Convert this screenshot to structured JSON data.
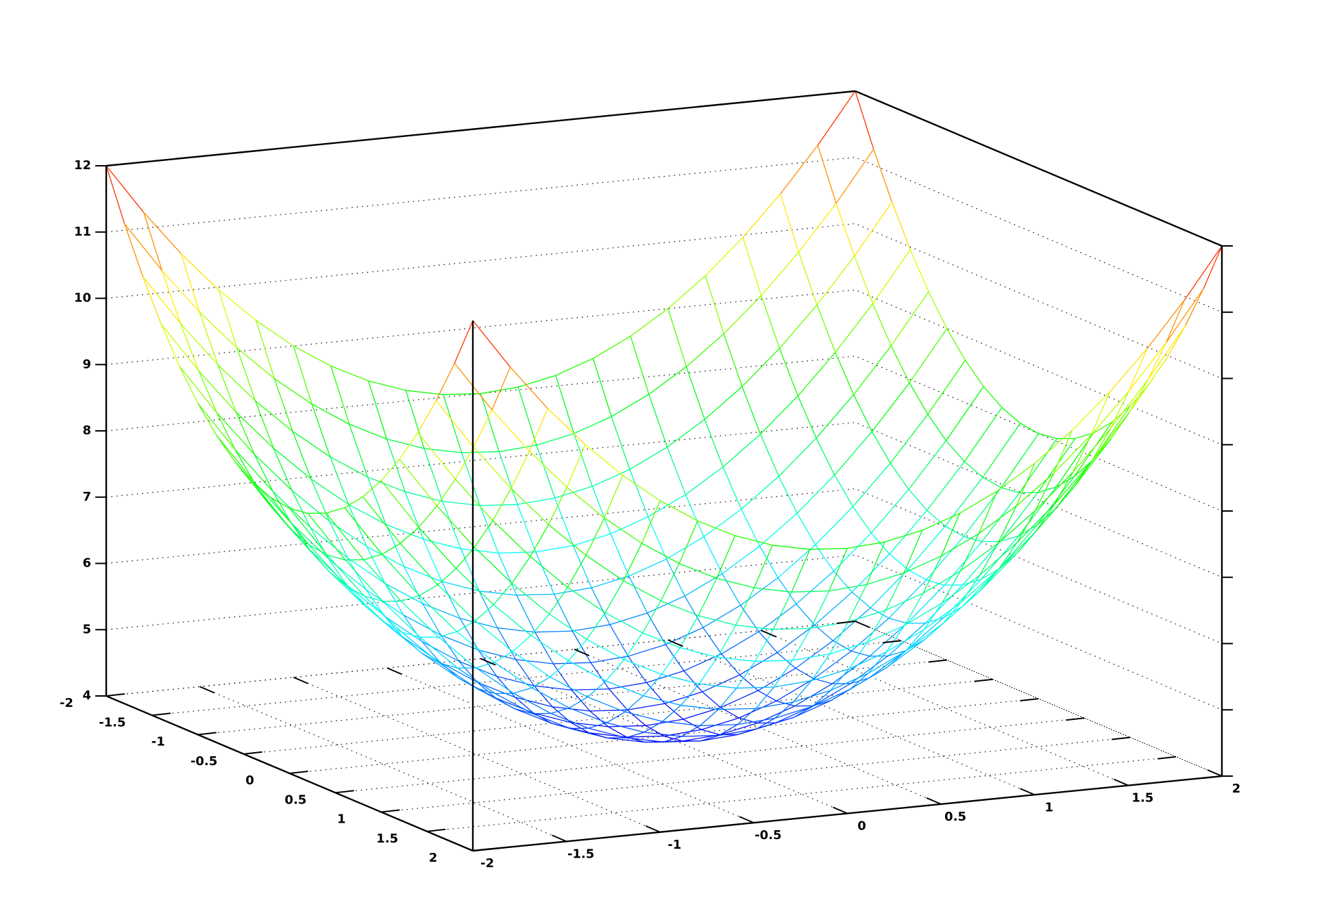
{
  "chart_data": {
    "type": "surface",
    "x": [
      -2,
      -1.8,
      -1.6,
      -1.4,
      -1.2,
      -1,
      -0.8,
      -0.6,
      -0.4,
      -0.2,
      0,
      0.2,
      0.4,
      0.6,
      0.8,
      1,
      1.2,
      1.4,
      1.6,
      1.8,
      2
    ],
    "y": [
      -2,
      -1.8,
      -1.6,
      -1.4,
      -1.2,
      -1,
      -0.8,
      -0.6,
      -0.4,
      -0.2,
      0,
      0.2,
      0.4,
      0.6,
      0.8,
      1,
      1.2,
      1.4,
      1.6,
      1.8,
      2
    ],
    "z": [
      [
        12,
        11.24,
        10.56,
        9.96,
        9.44,
        9,
        8.64,
        8.36,
        8.16,
        8.04,
        8,
        8.04,
        8.16,
        8.36,
        8.64,
        9,
        9.44,
        9.96,
        10.56,
        11.24,
        12
      ],
      [
        11.24,
        10.48,
        9.8,
        9.2,
        8.68,
        8.24,
        7.88,
        7.6,
        7.4,
        7.28,
        7.24,
        7.28,
        7.4,
        7.6,
        7.88,
        8.24,
        8.68,
        9.2,
        9.8,
        10.48,
        11.24
      ],
      [
        10.56,
        9.8,
        9.12,
        8.52,
        8,
        7.56,
        7.2,
        6.92,
        6.72,
        6.6,
        6.56,
        6.6,
        6.72,
        6.92,
        7.2,
        7.56,
        8,
        8.52,
        9.12,
        9.8,
        10.56
      ],
      [
        9.96,
        9.2,
        8.52,
        7.92,
        7.4,
        6.96,
        6.6,
        6.32,
        6.12,
        6,
        5.96,
        6,
        6.12,
        6.32,
        6.6,
        6.96,
        7.4,
        7.92,
        8.52,
        9.2,
        9.96
      ],
      [
        9.44,
        8.68,
        8,
        7.4,
        6.88,
        6.44,
        6.08,
        5.8,
        5.6,
        5.48,
        5.44,
        5.48,
        5.6,
        5.8,
        6.08,
        6.44,
        6.88,
        7.4,
        8,
        8.68,
        9.44
      ],
      [
        9,
        8.24,
        7.56,
        6.96,
        6.44,
        6,
        5.64,
        5.36,
        5.16,
        5.04,
        5,
        5.04,
        5.16,
        5.36,
        5.64,
        6,
        6.44,
        6.96,
        7.56,
        8.24,
        9
      ],
      [
        8.64,
        7.88,
        7.2,
        6.6,
        6.08,
        5.64,
        5.28,
        5,
        4.8,
        4.68,
        4.64,
        4.68,
        4.8,
        5,
        5.28,
        5.64,
        6.08,
        6.6,
        7.2,
        7.88,
        8.64
      ],
      [
        8.36,
        7.6,
        6.92,
        6.32,
        5.8,
        5.36,
        5,
        4.72,
        4.52,
        4.4,
        4.36,
        4.4,
        4.52,
        4.72,
        5,
        5.36,
        5.8,
        6.32,
        6.92,
        7.6,
        8.36
      ],
      [
        8.16,
        7.4,
        6.72,
        6.12,
        5.6,
        5.16,
        4.8,
        4.52,
        4.32,
        4.2,
        4.16,
        4.2,
        4.32,
        4.52,
        4.8,
        5.16,
        5.6,
        6.12,
        6.72,
        7.4,
        8.16
      ],
      [
        8.04,
        7.28,
        6.6,
        6,
        5.48,
        5.04,
        4.68,
        4.4,
        4.2,
        4.08,
        4.04,
        4.08,
        4.2,
        4.4,
        4.68,
        5.04,
        5.48,
        6,
        6.6,
        7.28,
        8.04
      ],
      [
        8,
        7.24,
        6.56,
        5.96,
        5.44,
        5,
        4.64,
        4.36,
        4.16,
        4.04,
        4,
        4.04,
        4.16,
        4.36,
        4.64,
        5,
        5.44,
        5.96,
        6.56,
        7.24,
        8
      ],
      [
        8.04,
        7.28,
        6.6,
        6,
        5.48,
        5.04,
        4.68,
        4.4,
        4.2,
        4.08,
        4.04,
        4.08,
        4.2,
        4.4,
        4.68,
        5.04,
        5.48,
        6,
        6.6,
        7.28,
        8.04
      ],
      [
        8.16,
        7.4,
        6.72,
        6.12,
        5.6,
        5.16,
        4.8,
        4.52,
        4.32,
        4.2,
        4.16,
        4.2,
        4.32,
        4.52,
        4.8,
        5.16,
        5.6,
        6.12,
        6.72,
        7.4,
        8.16
      ],
      [
        8.36,
        7.6,
        6.92,
        6.32,
        5.8,
        5.36,
        5,
        4.72,
        4.52,
        4.4,
        4.36,
        4.4,
        4.52,
        4.72,
        5,
        5.36,
        5.8,
        6.32,
        6.92,
        7.6,
        8.36
      ],
      [
        8.64,
        7.88,
        7.2,
        6.6,
        6.08,
        5.64,
        5.28,
        5,
        4.8,
        4.68,
        4.64,
        4.68,
        4.8,
        5,
        5.28,
        5.64,
        6.08,
        6.6,
        7.2,
        7.88,
        8.64
      ],
      [
        9,
        8.24,
        7.56,
        6.96,
        6.44,
        6,
        5.64,
        5.36,
        5.16,
        5.04,
        5,
        5.04,
        5.16,
        5.36,
        5.64,
        6,
        6.44,
        6.96,
        7.56,
        8.24,
        9
      ],
      [
        9.44,
        8.68,
        8,
        7.4,
        6.88,
        6.44,
        6.08,
        5.8,
        5.6,
        5.48,
        5.44,
        5.48,
        5.6,
        5.8,
        6.08,
        6.44,
        6.88,
        7.4,
        8,
        8.68,
        9.44
      ],
      [
        9.96,
        9.2,
        8.52,
        7.92,
        7.4,
        6.96,
        6.6,
        6.32,
        6.12,
        6,
        5.96,
        6,
        6.12,
        6.32,
        6.6,
        6.96,
        7.4,
        7.92,
        8.52,
        9.2,
        9.96
      ],
      [
        10.56,
        9.8,
        9.12,
        8.52,
        8,
        7.56,
        7.2,
        6.92,
        6.72,
        6.6,
        6.56,
        6.6,
        6.72,
        6.92,
        7.2,
        7.56,
        8,
        8.52,
        9.12,
        9.8,
        10.56
      ],
      [
        11.24,
        10.48,
        9.8,
        9.2,
        8.68,
        8.24,
        7.88,
        7.6,
        7.4,
        7.28,
        7.24,
        7.28,
        7.4,
        7.6,
        7.88,
        8.24,
        8.68,
        9.2,
        9.8,
        10.48,
        11.24
      ],
      [
        12,
        11.24,
        10.56,
        9.96,
        9.44,
        9,
        8.64,
        8.36,
        8.16,
        8.04,
        8,
        8.04,
        8.16,
        8.36,
        8.64,
        9,
        9.44,
        9.96,
        10.56,
        11.24,
        12
      ]
    ],
    "xlim": [
      -2,
      2
    ],
    "ylim": [
      -2,
      2
    ],
    "zlim": [
      4,
      12
    ],
    "xticks": [
      -2,
      -1.5,
      -1,
      -0.5,
      0,
      0.5,
      1,
      1.5,
      2
    ],
    "yticks": [
      -2,
      -1.5,
      -1,
      -0.5,
      0,
      0.5,
      1,
      1.5,
      2
    ],
    "zticks": [
      4,
      5,
      6,
      7,
      8,
      9,
      10,
      11,
      12
    ],
    "grid": true,
    "palette": [
      "#0000ff",
      "#00ffff",
      "#00ff00",
      "#ffff00",
      "#ff0000"
    ]
  }
}
